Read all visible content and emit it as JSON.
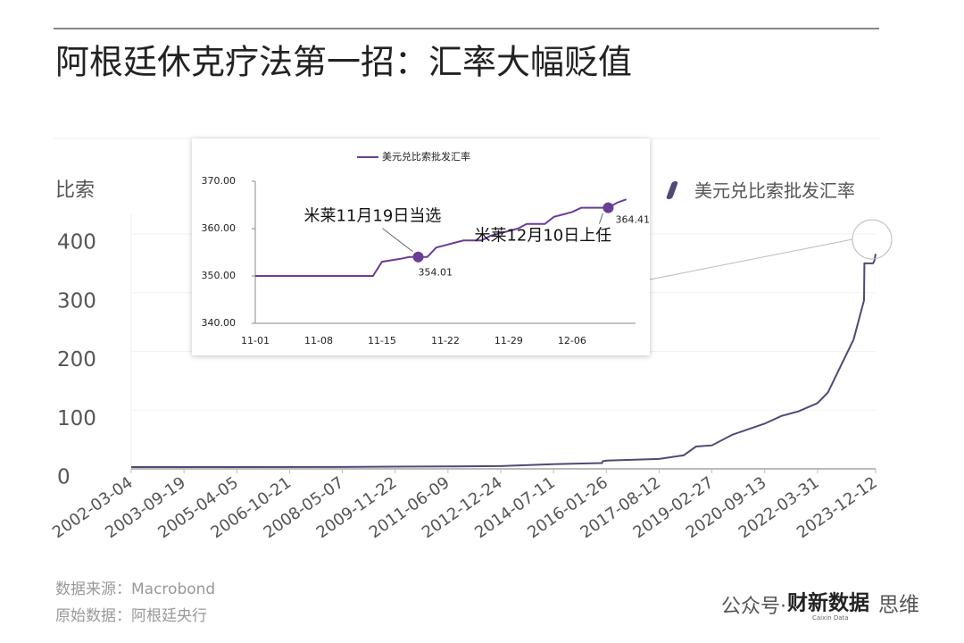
{
  "chart_data": [
    {
      "type": "line",
      "title": "阿根廷休克疗法第一招：汇率大幅贬值",
      "ylabel": "比索",
      "x": [
        "2002-03-04",
        "2003-09-19",
        "2005-04-05",
        "2008-05-07",
        "2009-11-22",
        "2011-06-09",
        "2012-12-24",
        "2014-07-11",
        "2015-12-10",
        "2015-12-20",
        "2016-01-26",
        "2017-08-12",
        "2018-05-01",
        "2018-09-10",
        "2019-02-27",
        "2019-10-01",
        "2020-09-13",
        "2021-03-10",
        "2021-09-10",
        "2022-03-31",
        "2022-07-20",
        "2022-12-10",
        "2023-04-20",
        "2023-08-10",
        "2023-08-14",
        "2023-11-14",
        "2023-11-28",
        "2023-12-12"
      ],
      "series": [
        {
          "name": "美元兑比索批发汇率",
          "color": "#4d4a78",
          "values": [
            3,
            3,
            3,
            3.2,
            3.8,
            4.2,
            4.8,
            8,
            9.8,
            13,
            14,
            17,
            23,
            38,
            40,
            58,
            77,
            90,
            98,
            112,
            130,
            177,
            220,
            287,
            350,
            350,
            354,
            366
          ]
        }
      ],
      "xlim": [
        "2002-03-04",
        "2023-12-12"
      ],
      "xticks": [
        "2002-03-04",
        "2003-09-19",
        "2005-04-05",
        "2006-10-21",
        "2008-05-07",
        "2009-11-22",
        "2011-06-09",
        "2012-12-24",
        "2014-07-11",
        "2016-01-26",
        "2017-08-12",
        "2019-02-27",
        "2020-09-13",
        "2022-03-31",
        "2023-12-12"
      ],
      "ylim": [
        0,
        400
      ],
      "yticks": [
        0,
        100,
        200,
        300,
        400
      ],
      "source": "数据来源：Macrobond",
      "raw_source": "原始数据：阿根廷央行",
      "watermark": "公众号·",
      "brand": "财新数据",
      "brand_sub": "Caixin Data",
      "brand_tail": "思维"
    },
    {
      "type": "line",
      "categories": [
        "11-01",
        null,
        null,
        null,
        null,
        null,
        null,
        "11-08",
        null,
        null,
        null,
        null,
        null,
        null,
        "11-15",
        null,
        null,
        null,
        null,
        null,
        null,
        "11-22",
        null,
        null,
        null,
        null,
        null,
        null,
        "11-29",
        null,
        null,
        null,
        null,
        null,
        null,
        "12-06",
        null,
        null,
        null,
        null,
        null,
        null
      ],
      "series": [
        {
          "name": "美元兑比索批发汇率",
          "color": "#6a3d96",
          "values": [
            350,
            350,
            350,
            350,
            350,
            350,
            350,
            350,
            350,
            350,
            350,
            350,
            350,
            350,
            353,
            353.3,
            353.6,
            354,
            354.01,
            354,
            356,
            356.5,
            357,
            357.5,
            357.5,
            357.5,
            358.5,
            359,
            359.5,
            360,
            361,
            361,
            361,
            362.5,
            363,
            363.5,
            364.4,
            364.4,
            364.41,
            364.41,
            365.5,
            366.2
          ]
        }
      ],
      "ylim": [
        340,
        370
      ],
      "yticks": [
        {
          "value": 340,
          "label": "340.00"
        },
        {
          "value": 350,
          "label": "350.00"
        },
        {
          "value": 360,
          "label": "360.00"
        },
        {
          "value": 370,
          "label": "370.00"
        }
      ],
      "annotations": [
        {
          "text": "米莱11月19日当选",
          "index": 18
        },
        {
          "text": "米莱12月10日上任",
          "index": 39
        }
      ]
    }
  ]
}
